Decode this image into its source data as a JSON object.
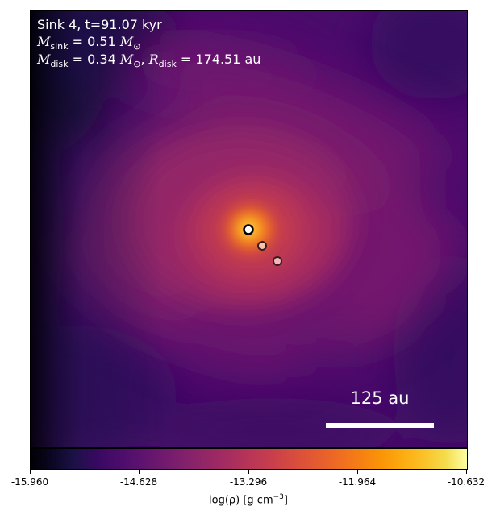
{
  "panel": {
    "title_line": "Sink 4, t=91.07 kyr",
    "sink_mass_line": {
      "symbol": "M",
      "subscript": "sink",
      "value": "0.51",
      "unit": "M",
      "unit_subscript": "⊙"
    },
    "disk_line": {
      "mass_symbol": "M",
      "mass_subscript": "disk",
      "mass_value": "0.34",
      "mass_unit": "M",
      "mass_unit_subscript": "⊙",
      "radius_symbol": "R",
      "radius_subscript": "disk",
      "radius_value": "174.51",
      "radius_unit": "au"
    },
    "scale_bar_label": "125 au"
  },
  "colorbar": {
    "ticks": [
      "-15.960",
      "-14.628",
      "-13.296",
      "-11.964",
      "-10.632"
    ],
    "label_prefix": "log(ρ) [g cm",
    "label_exponent": "−3",
    "label_suffix": "]",
    "colormap": "inferno"
  },
  "sinks": [
    {
      "name": "sink-primary",
      "fill": "#ffffff",
      "stroke": "#000000"
    },
    {
      "name": "sink-secondary",
      "fill": "#f4c5b0",
      "stroke": "#3a1a1a"
    },
    {
      "name": "sink-tertiary",
      "fill": "#f0b8b8",
      "stroke": "#3a1a1a"
    }
  ]
}
